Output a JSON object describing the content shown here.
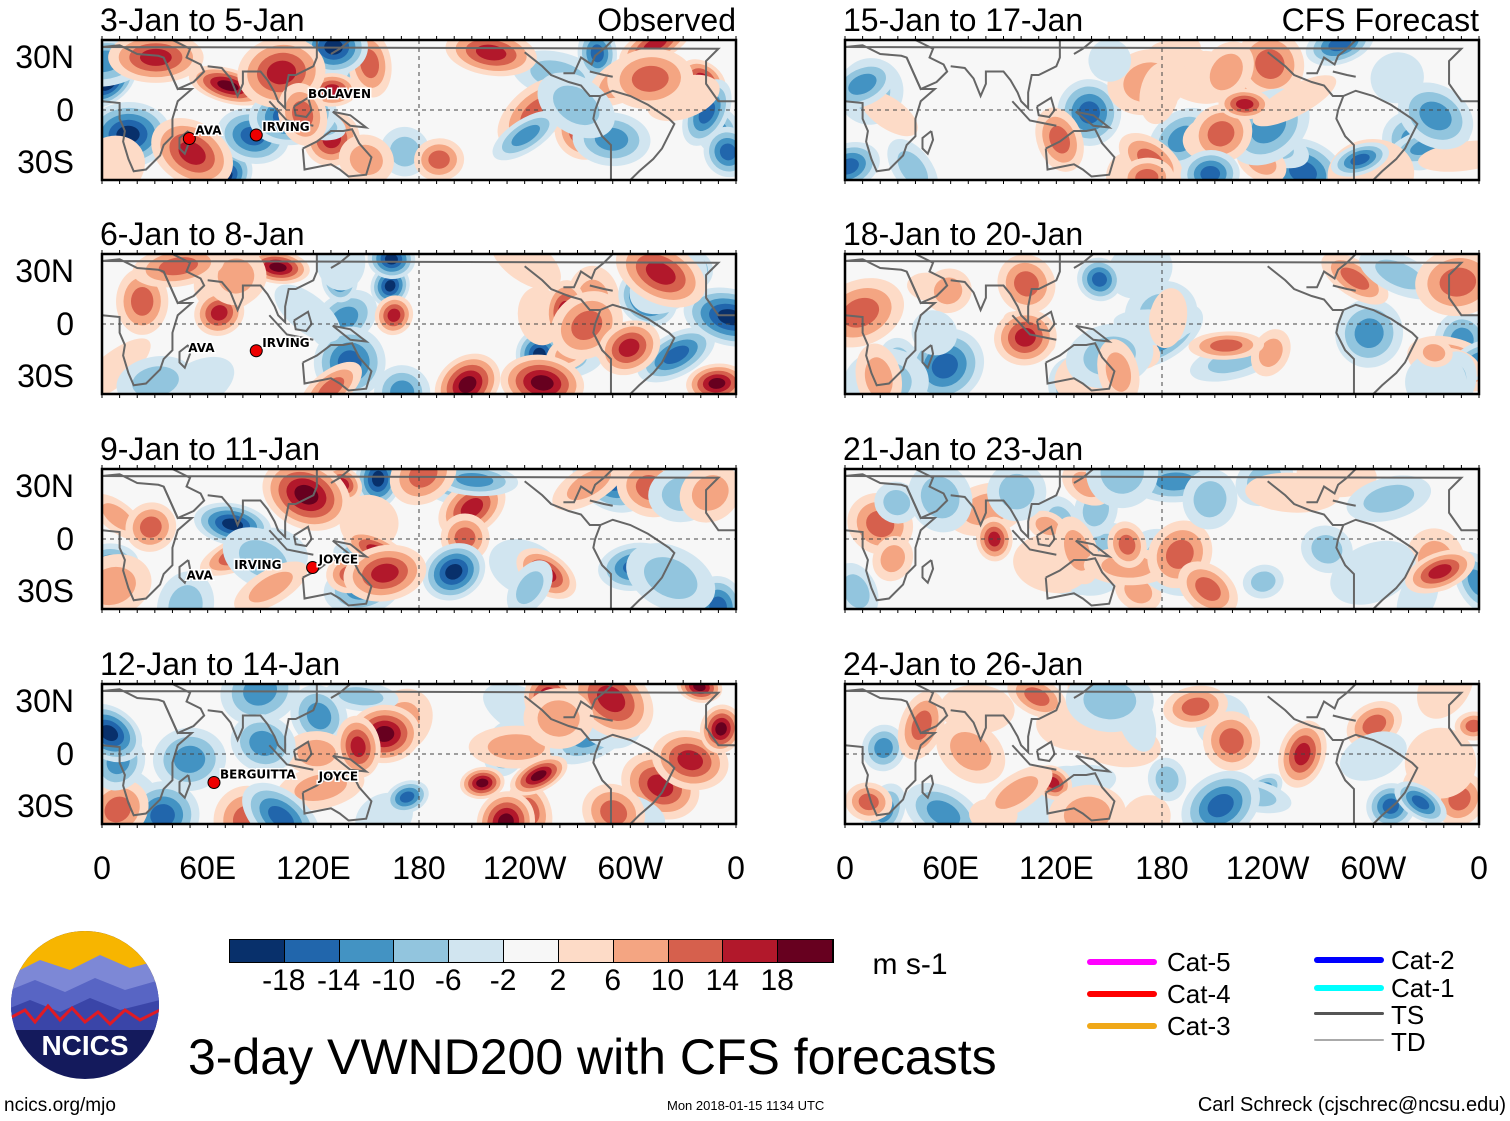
{
  "header": {
    "left_label": "Observed",
    "right_label": "CFS Forecast"
  },
  "panels": [
    {
      "title": "3-Jan to 5-Jan",
      "column": "observed",
      "storms": [
        {
          "name": "AVA",
          "lon": 53,
          "lat": -14,
          "marker": true
        },
        {
          "name": "IRVING",
          "lon": 91,
          "lat": -12,
          "marker": true
        },
        {
          "name": "BOLAVEN",
          "lon": 117,
          "lat": 7,
          "marker": false
        }
      ]
    },
    {
      "title": "6-Jan to 8-Jan",
      "column": "observed",
      "storms": [
        {
          "name": "AVA",
          "lon": 49,
          "lat": -16,
          "marker": false
        },
        {
          "name": "IRVING",
          "lon": 91,
          "lat": -13,
          "marker": true
        }
      ]
    },
    {
      "title": "9-Jan to 11-Jan",
      "column": "observed",
      "storms": [
        {
          "name": "AVA",
          "lon": 48,
          "lat": -23,
          "marker": false
        },
        {
          "name": "IRVING",
          "lon": 75,
          "lat": -17,
          "marker": false
        },
        {
          "name": "JOYCE",
          "lon": 123,
          "lat": -14,
          "marker": true
        }
      ]
    },
    {
      "title": "12-Jan to 14-Jan",
      "column": "observed",
      "storms": [
        {
          "name": "BERGUITTA",
          "lon": 67,
          "lat": -14,
          "marker": true
        },
        {
          "name": "JOYCE",
          "lon": 123,
          "lat": -15,
          "marker": false
        }
      ]
    },
    {
      "title": "15-Jan to 17-Jan",
      "column": "forecast",
      "storms": []
    },
    {
      "title": "18-Jan to 20-Jan",
      "column": "forecast",
      "storms": []
    },
    {
      "title": "21-Jan to 23-Jan",
      "column": "forecast",
      "storms": []
    },
    {
      "title": "24-Jan to 26-Jan",
      "column": "forecast",
      "storms": []
    }
  ],
  "lat_labels": [
    "30N",
    "0",
    "30S"
  ],
  "lon_labels": [
    "0",
    "60E",
    "120E",
    "180",
    "120W",
    "60W",
    "0"
  ],
  "colorbar": {
    "colors": [
      "#08306b",
      "#2166ac",
      "#4393c3",
      "#92c5de",
      "#d1e5f0",
      "#f7f7f7",
      "#fddbc7",
      "#f4a582",
      "#d6604d",
      "#b2182b",
      "#67001f"
    ],
    "ticks": [
      "-18",
      "-14",
      "-10",
      "-6",
      "-2",
      "2",
      "6",
      "10",
      "14",
      "18"
    ],
    "units": "m s-1"
  },
  "legend": [
    {
      "label": "Cat-5",
      "color": "#ff00ff"
    },
    {
      "label": "Cat-4",
      "color": "#ff0000"
    },
    {
      "label": "Cat-3",
      "color": "#f0a818"
    },
    {
      "label": "Cat-2",
      "color": "#0000ff"
    },
    {
      "label": "Cat-1",
      "color": "#00ffff"
    },
    {
      "label": "TS",
      "color": "#555555"
    },
    {
      "label": "TD",
      "color": "#aaaaaa"
    }
  ],
  "title": "3-day VWND200 with CFS forecasts",
  "logo_text": "NCICS",
  "footer": {
    "url": "ncics.org/mjo",
    "timestamp": "Mon 2018-01-15 1134 UTC",
    "author": "Carl Schreck (cjschrec@ncsu.edu)"
  }
}
